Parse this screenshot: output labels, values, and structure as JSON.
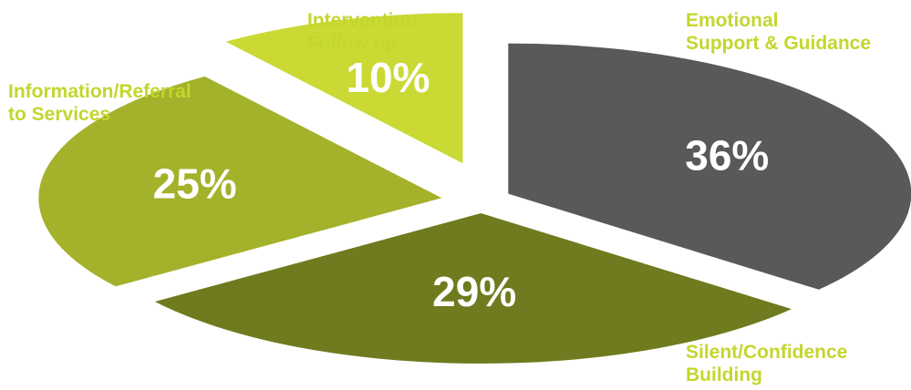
{
  "chart_data": {
    "type": "pie",
    "title": "",
    "categories": [
      [
        "Emotional",
        "Support & Guidance"
      ],
      [
        "Silent/Confidence",
        "Building"
      ],
      [
        "Information/Referral",
        "to Services"
      ],
      [
        "Intervention",
        "Follow up"
      ]
    ],
    "values": [
      36,
      29,
      25,
      10
    ],
    "value_labels": [
      "36%",
      "29%",
      "25%",
      "10%"
    ],
    "colors": [
      "#58595b",
      "#6f7b1e",
      "#a4b12b",
      "#cad934"
    ],
    "label_color": "#c4d62d",
    "legend": "none"
  }
}
